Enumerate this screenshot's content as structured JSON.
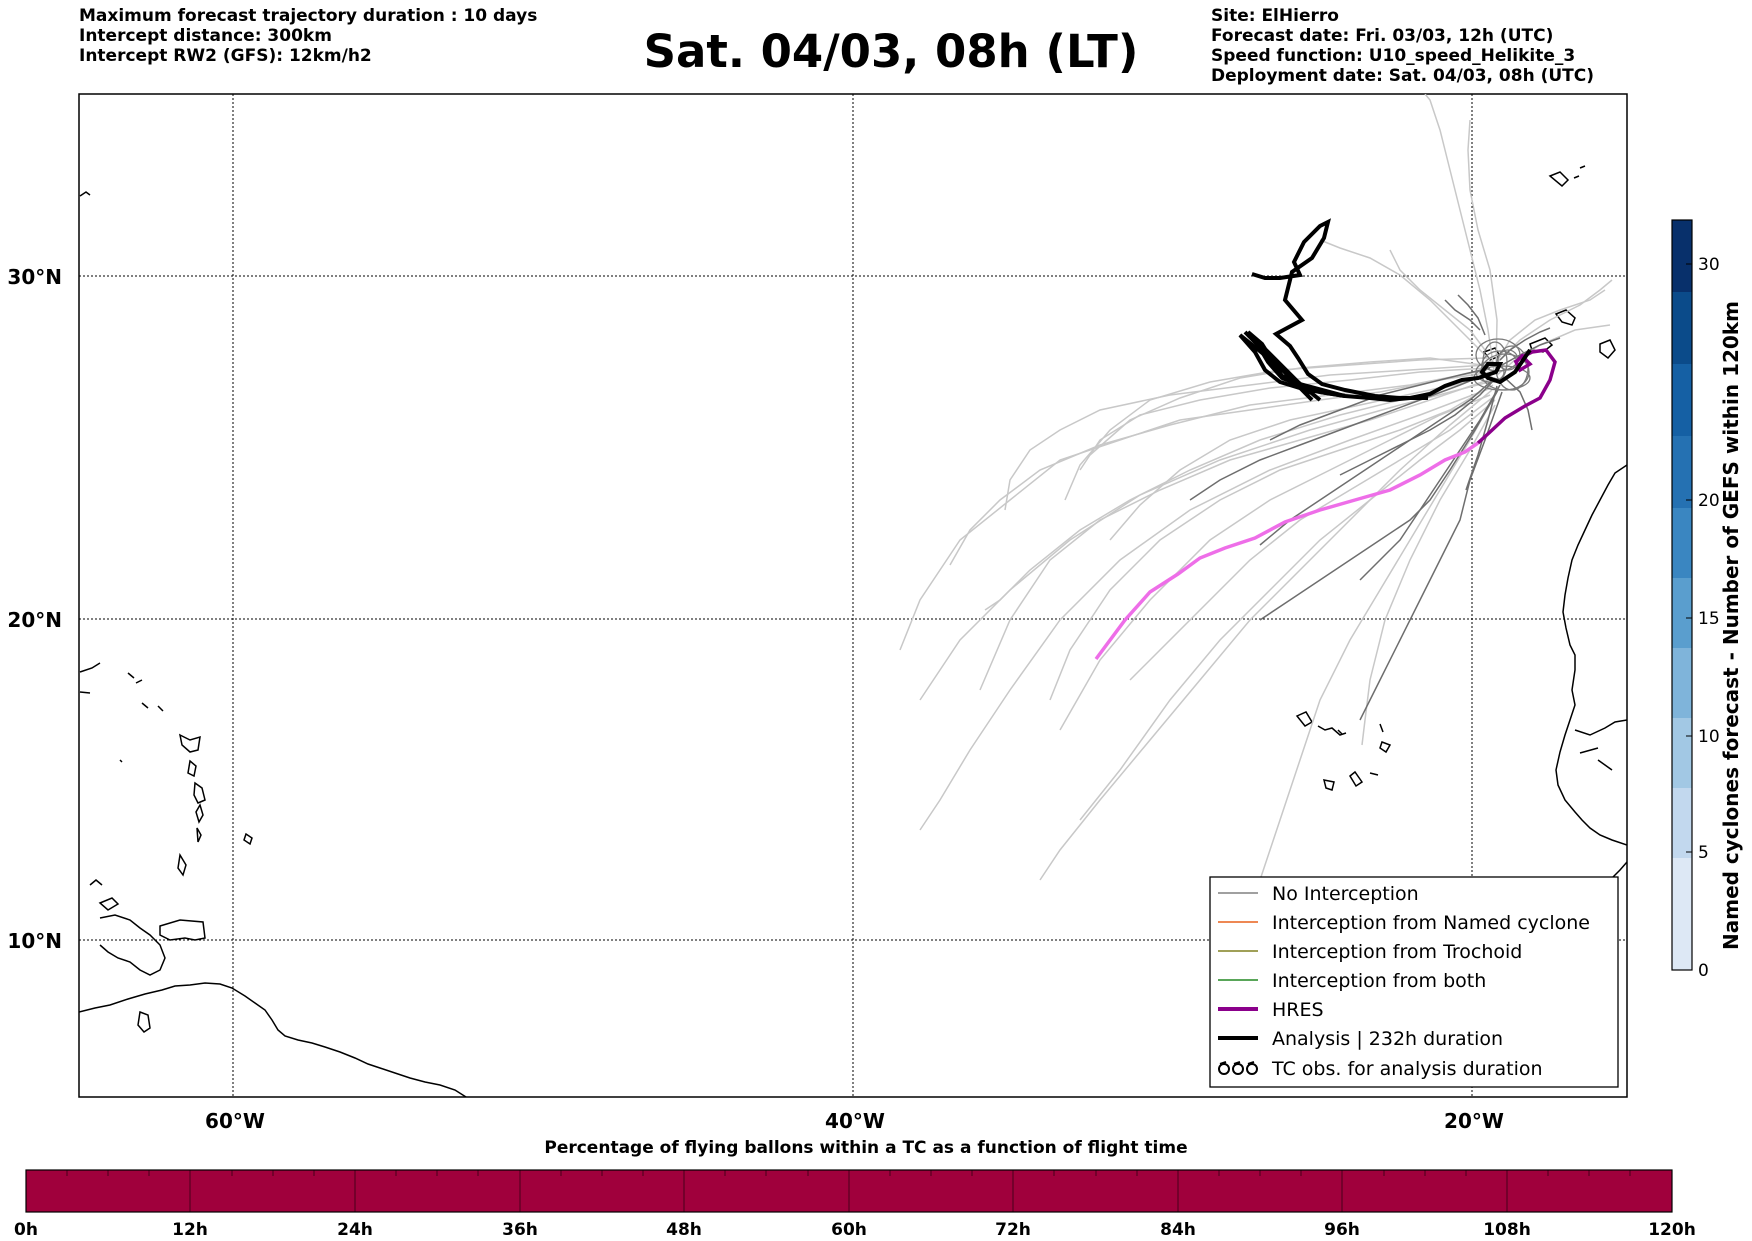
{
  "header": {
    "left": [
      "Maximum forecast trajectory duration : 10 days",
      "Intercept distance: 300km",
      "Intercept RW2 (GFS):  12km/h2"
    ],
    "title": "Sat. 04/03, 08h (LT)",
    "right": [
      "Site: ElHierro",
      "Forecast date: Fri. 03/03, 12h (UTC)",
      "Speed function: U10_speed_Helikite_3",
      "Deployment date: Sat. 04/03, 08h (UTC)"
    ]
  },
  "map": {
    "lon_range": [
      -65,
      15
    ],
    "lat_range": [
      5,
      34
    ],
    "lat_labels": [
      "30°N",
      "20°N",
      "10°N"
    ],
    "lon_labels": [
      "60°W",
      "40°W",
      "20°W"
    ],
    "grid": "dotted"
  },
  "legend": {
    "items": [
      {
        "label": "No Interception",
        "color": "#808080"
      },
      {
        "label": "Interception from Named cyclone",
        "color": "#e8601c"
      },
      {
        "label": "Interception from Trochoid",
        "color": "#808020"
      },
      {
        "label": "Interception from both",
        "color": "#228822"
      },
      {
        "label": "HRES",
        "color": "#8b008b"
      },
      {
        "label": "Analysis | 232h duration",
        "color": "#000000"
      },
      {
        "label": "TC obs. for analysis duration",
        "color": "#000000",
        "icon": "cyclone-symbol-icon"
      }
    ]
  },
  "colorbar_right": {
    "label": "Named cyclones forecast - Number of GEFS within 120km",
    "ticks": [
      "0",
      "5",
      "10",
      "15",
      "20",
      "30"
    ],
    "colors": [
      "#dde8f5",
      "#c2d8ee",
      "#a2c8e4",
      "#7fb4da",
      "#5a9ece",
      "#3a86c1",
      "#2571b2",
      "#1560a4",
      "#0b4b8a",
      "#08306b"
    ]
  },
  "colorbar_bottom": {
    "title": "Percentage of flying ballons within a TC as a function of flight time",
    "color": "#a0003c",
    "ticks": [
      "0h",
      "12h",
      "24h",
      "36h",
      "48h",
      "60h",
      "72h",
      "84h",
      "96h",
      "108h",
      "120h"
    ]
  }
}
